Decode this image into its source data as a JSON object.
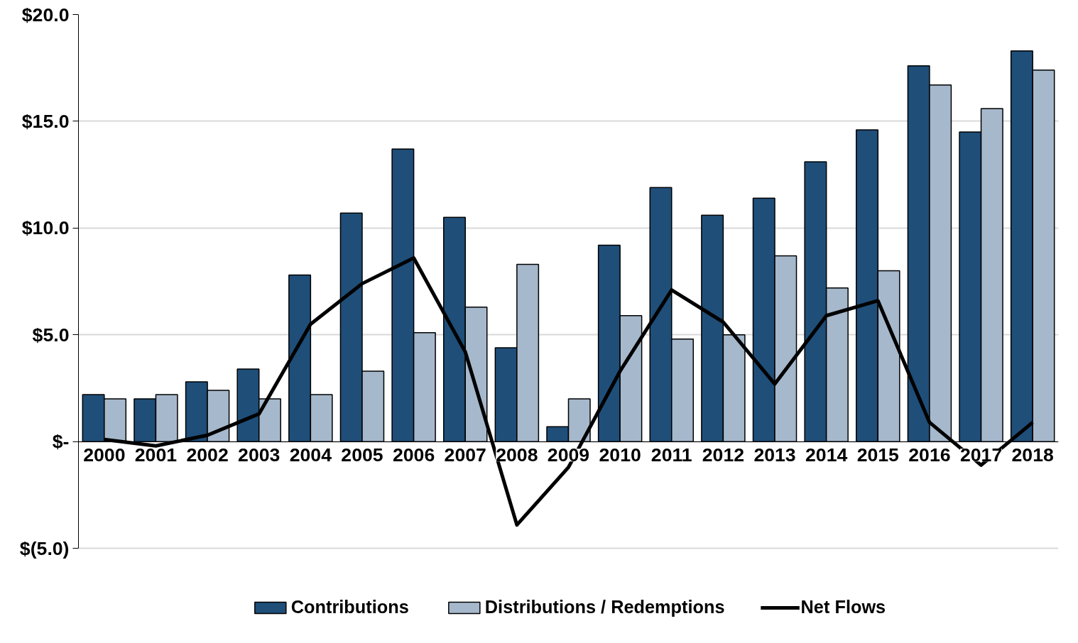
{
  "chart_data": {
    "type": "bar",
    "categories": [
      "2000",
      "2001",
      "2002",
      "2003",
      "2004",
      "2005",
      "2006",
      "2007",
      "2008",
      "2009",
      "2010",
      "2011",
      "2012",
      "2013",
      "2014",
      "2015",
      "2016",
      "2017",
      "2018"
    ],
    "series": [
      {
        "name": "Contributions",
        "color": "#1f4e79",
        "values": [
          2.2,
          2.0,
          2.8,
          3.4,
          7.8,
          10.7,
          13.7,
          10.5,
          4.4,
          0.7,
          9.2,
          11.9,
          10.6,
          11.4,
          13.1,
          14.6,
          17.6,
          14.5,
          18.3
        ]
      },
      {
        "name": "Distributions / Redemptions",
        "color": "#a6b8cc",
        "values": [
          2.0,
          2.2,
          2.4,
          2.0,
          2.2,
          3.3,
          5.1,
          6.3,
          8.3,
          2.0,
          5.9,
          4.8,
          5.0,
          8.7,
          7.2,
          8.0,
          16.7,
          15.6,
          17.4
        ]
      },
      {
        "name": "Net Flows",
        "type": "line",
        "color": "#000000",
        "values": [
          0.1,
          -0.2,
          0.3,
          1.3,
          5.5,
          7.4,
          8.6,
          4.2,
          -3.9,
          -1.2,
          3.3,
          7.1,
          5.6,
          2.7,
          5.9,
          6.6,
          0.9,
          -1.1,
          0.9
        ]
      }
    ],
    "ylim": [
      -5,
      20
    ],
    "yticks": [
      {
        "value": 20,
        "label": "$20.0"
      },
      {
        "value": 15,
        "label": "$15.0"
      },
      {
        "value": 10,
        "label": "$10.0"
      },
      {
        "value": 5,
        "label": "$5.0"
      },
      {
        "value": 0,
        "label": "$-"
      },
      {
        "value": -5,
        "label": "$(5.0)"
      }
    ],
    "grid": "y",
    "legend": "bottom",
    "marker": "none",
    "line_style": "solid"
  }
}
